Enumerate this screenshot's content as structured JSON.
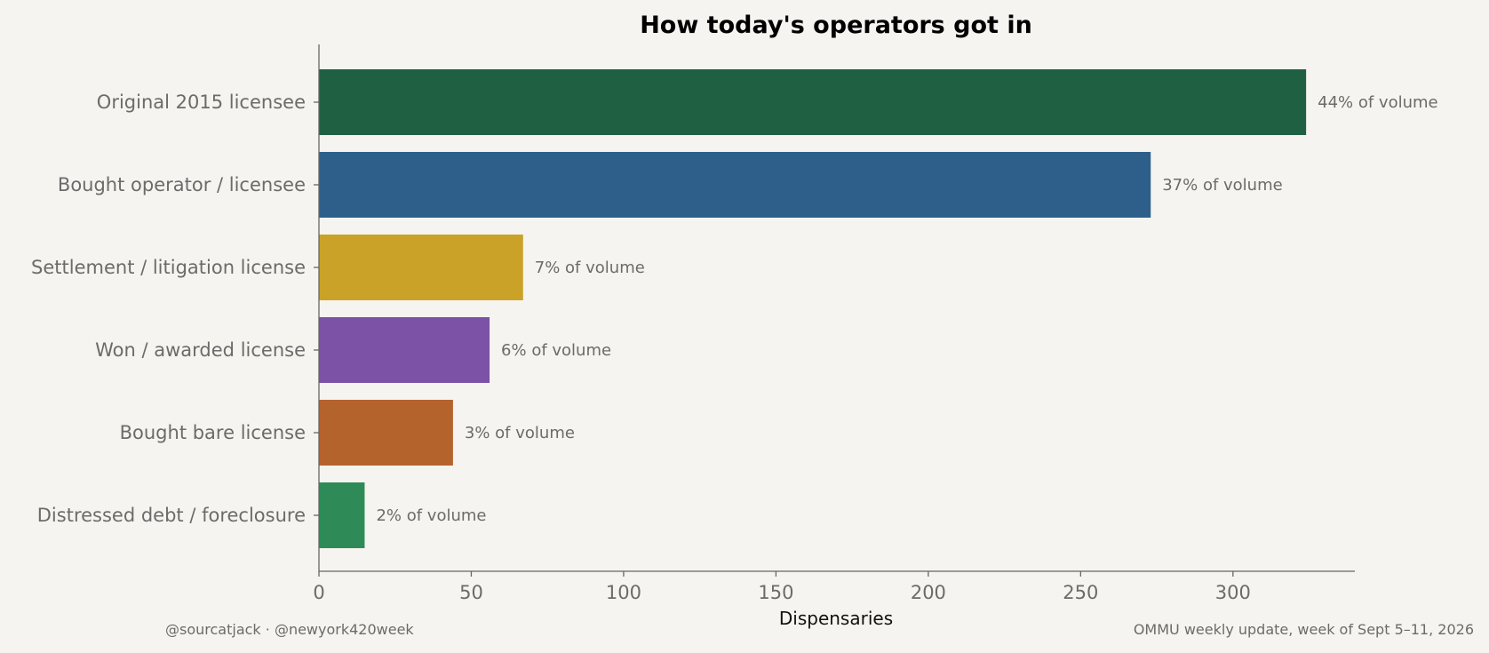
{
  "chart_data": {
    "type": "bar",
    "orientation": "horizontal",
    "title": "How today's operators got in",
    "xlabel": "Dispensaries",
    "ylabel": "",
    "xlim": [
      0,
      340
    ],
    "x_ticks": [
      0,
      50,
      100,
      150,
      200,
      250,
      300
    ],
    "grid": false,
    "categories": [
      "Original 2015 licensee",
      "Bought operator / licensee",
      "Settlement / litigation license",
      "Won / awarded license",
      "Bought bare license",
      "Distressed debt / foreclosure"
    ],
    "values": [
      324,
      273,
      67,
      56,
      44,
      15
    ],
    "data_labels": [
      "44% of volume",
      "37% of volume",
      "7% of volume",
      "6% of volume",
      "3% of volume",
      "2% of volume"
    ],
    "colors": [
      "#1f6042",
      "#2e5f8a",
      "#c9a227",
      "#7b52a6",
      "#b5632d",
      "#2e8b57"
    ]
  },
  "footer": {
    "left": "@sourcatjack · @newyork420week",
    "right": "OMMU weekly update, week of Sept 5–11, 2026"
  },
  "theme": {
    "background": "#f5f4f0",
    "axis_color": "#666666",
    "label_color": "#6b6b6b",
    "title_color": "#000000"
  }
}
